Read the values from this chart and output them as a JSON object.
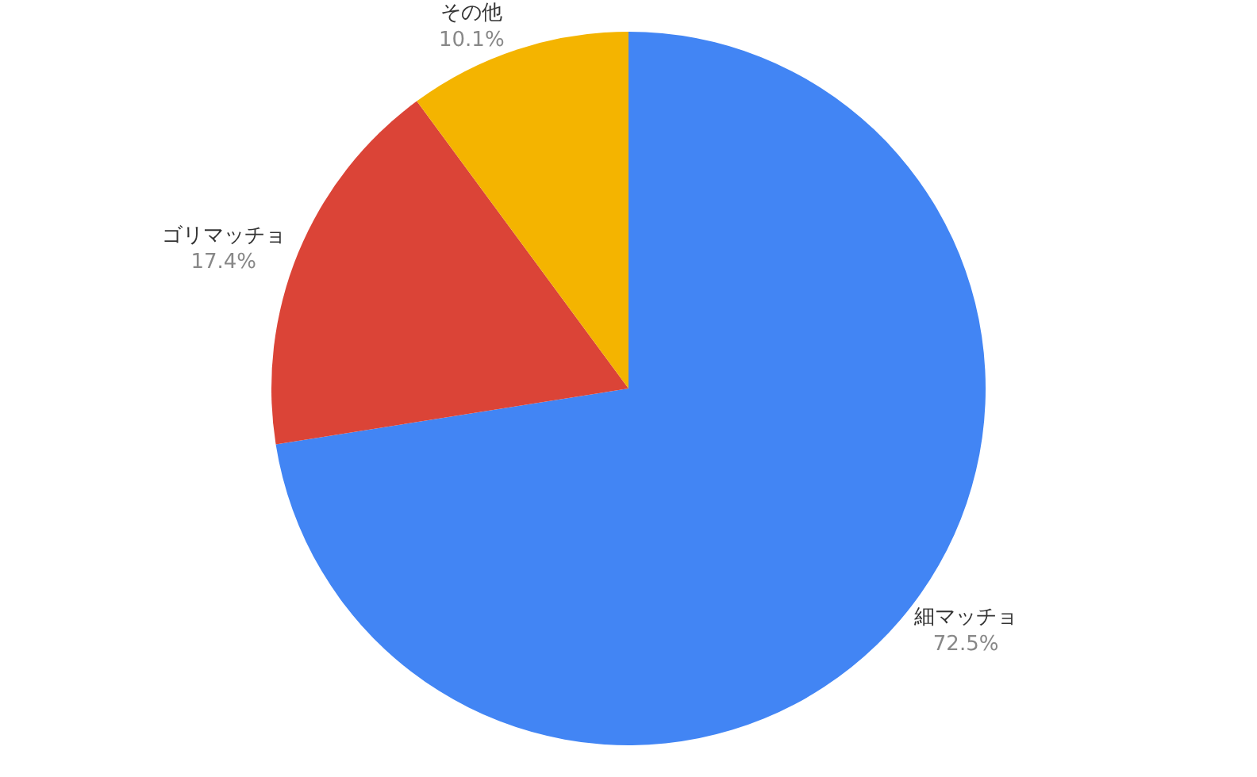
{
  "chart_data": {
    "type": "pie",
    "categories": [
      "細マッチョ",
      "ゴリマッチョ",
      "その他"
    ],
    "values": [
      72.5,
      17.4,
      10.1
    ],
    "colors": [
      "#4285f4",
      "#db4437",
      "#f4b400"
    ],
    "value_labels": [
      "72.5%",
      "17.4%",
      "10.1%"
    ],
    "legend": false
  }
}
